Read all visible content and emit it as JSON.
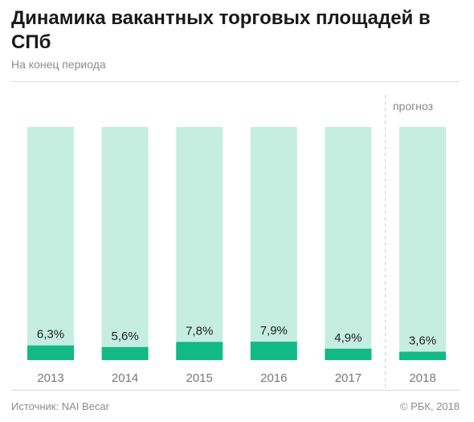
{
  "header": {
    "title": "Динамика вакантных торговых площадей в СПб",
    "subtitle": "На конец периода"
  },
  "footer": {
    "source": "Источник: NAI Becar",
    "copyright": "© РБК, 2018"
  },
  "chart_data": {
    "type": "bar",
    "title": "Динамика вакантных торговых площадей в СПб",
    "subtitle": "На конец периода",
    "categories": [
      "2013",
      "2014",
      "2015",
      "2016",
      "2017",
      "2018"
    ],
    "values": [
      6.3,
      5.6,
      7.8,
      7.9,
      4.9,
      3.6
    ],
    "value_labels": [
      "6,3%",
      "5,6%",
      "7,8%",
      "7,9%",
      "4,9%",
      "3,6%"
    ],
    "ylim": [
      0,
      100
    ],
    "forecast_label": "прогноз",
    "forecast_start_index": 5,
    "colors": {
      "value": "#13b985",
      "background": "#c5eee0",
      "divider": "#cccccc"
    },
    "grid": false
  }
}
